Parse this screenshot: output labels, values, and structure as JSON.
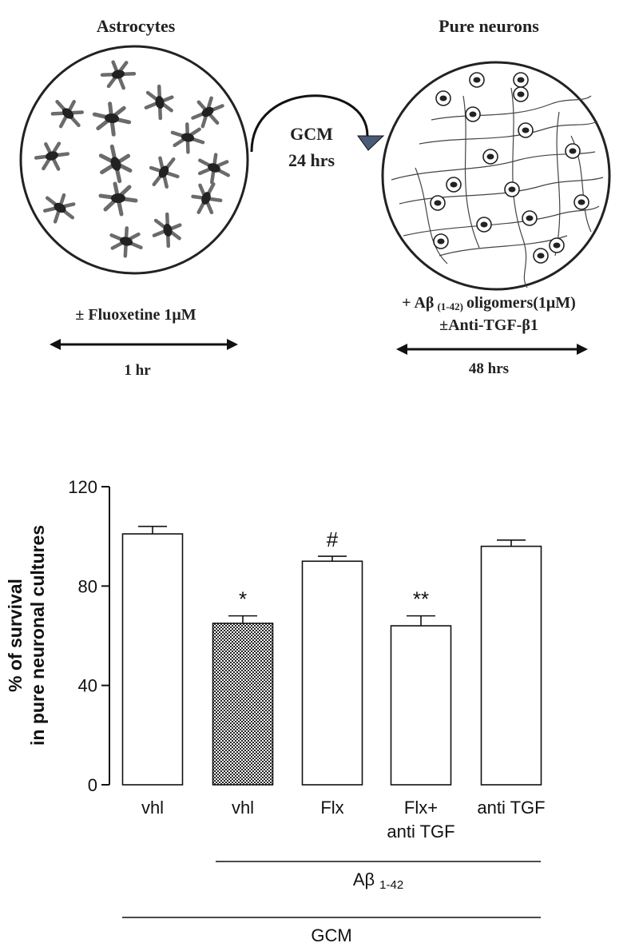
{
  "schematic": {
    "left_title": "Astrocytes",
    "right_title": "Pure neurons",
    "transfer_label_1": "GCM",
    "transfer_label_2": "24 hrs",
    "left_treatment": "± Fluoxetine 1μM",
    "left_duration": "1 hr",
    "right_treatment_prefix": "+ Aβ",
    "right_treatment_sub": "(1-42)",
    "right_treatment_suffix": "oligomers(1μM)",
    "right_treatment_2": "±Anti-TGF-β1",
    "right_duration": "48 hrs"
  },
  "chart_data": {
    "type": "bar",
    "ylabel_line1": "% of survival",
    "ylabel_line2": "in pure neuronal cultures",
    "ylim": [
      0,
      120
    ],
    "yticks": [
      0,
      40,
      80,
      120
    ],
    "categories": [
      "vhl",
      "vhl",
      "Flx",
      "Flx+|anti TGF",
      "anti TGF"
    ],
    "values": [
      101,
      65,
      90,
      64,
      96
    ],
    "errors": [
      3,
      3,
      2,
      4,
      2.5
    ],
    "patterns": [
      "none",
      "checker",
      "none",
      "none",
      "none"
    ],
    "annotations": [
      "",
      "*",
      "#",
      "**",
      ""
    ],
    "groups": [
      {
        "label": "Aβ",
        "sub": "1-42",
        "from": 1,
        "to": 4
      },
      {
        "label": "GCM",
        "sub": "",
        "from": 0,
        "to": 4
      }
    ]
  }
}
